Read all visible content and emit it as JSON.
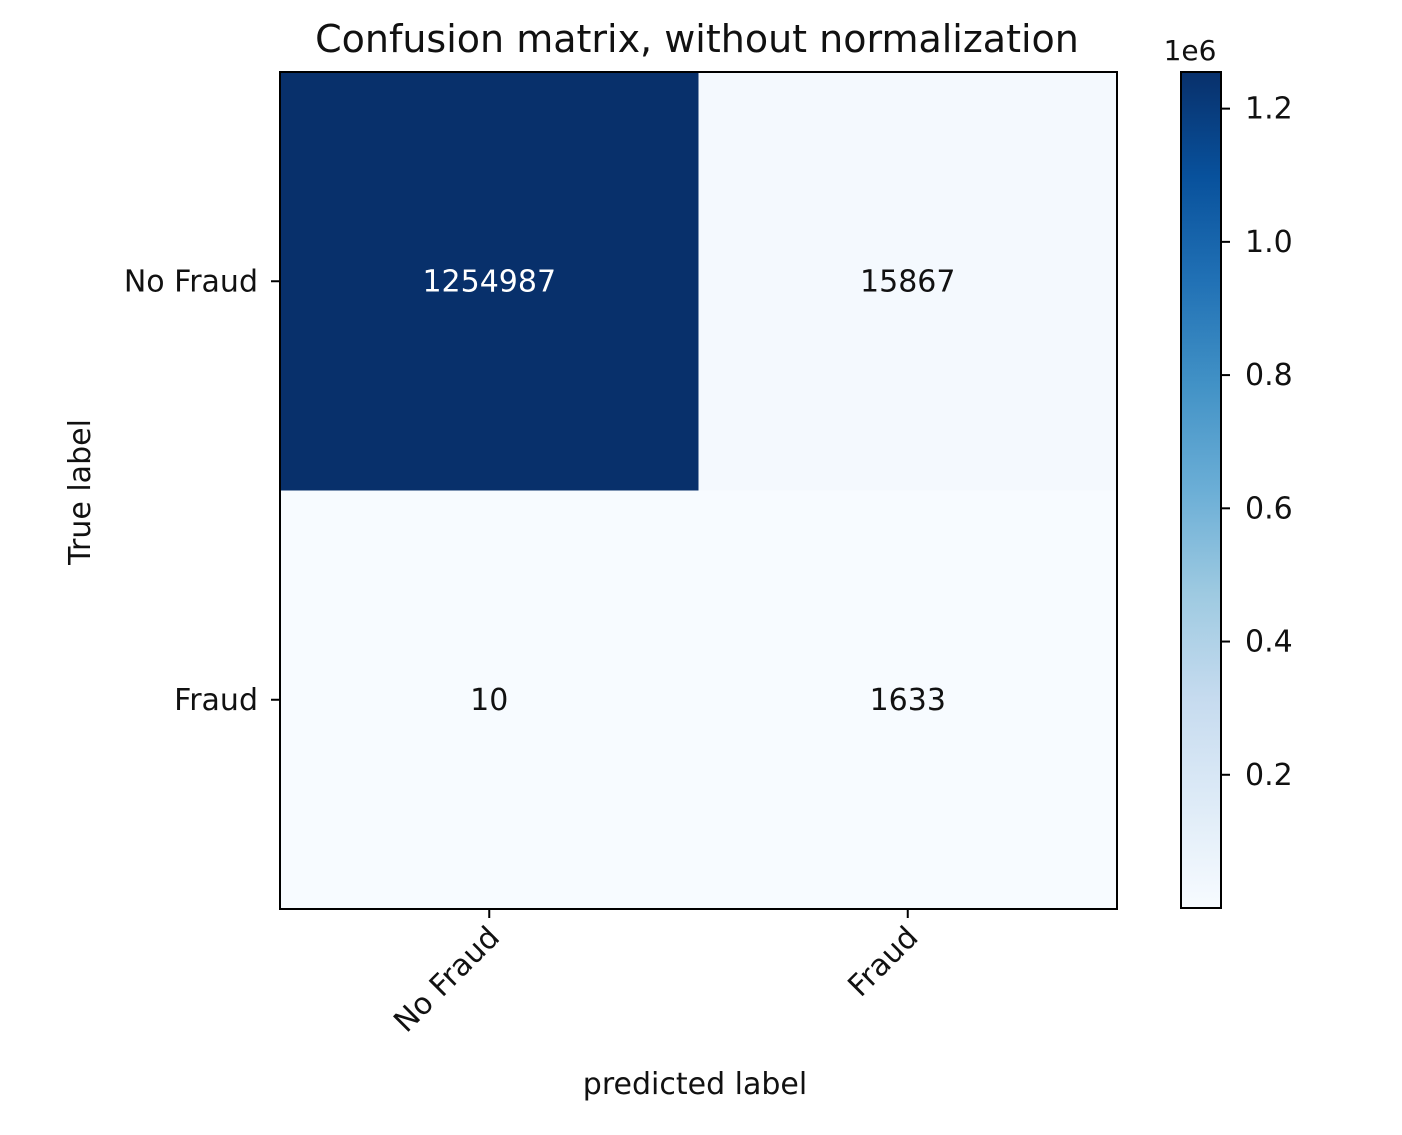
{
  "chart_data": {
    "type": "heatmap",
    "title": "Confusion matrix, without normalization",
    "xlabel": "predicted label",
    "ylabel": "True label",
    "x_categories": [
      "No Fraud",
      "Fraud"
    ],
    "y_categories": [
      "No Fraud",
      "Fraud"
    ],
    "matrix": [
      [
        1254987,
        15867
      ],
      [
        10,
        1633
      ]
    ],
    "cell_labels": [
      [
        "1254987",
        "15867"
      ],
      [
        "10",
        "1633"
      ]
    ],
    "colormap": "Blues",
    "colormap_stops": [
      "#f7fbff",
      "#deebf7",
      "#c6dbef",
      "#9ecae1",
      "#6baed6",
      "#4292c6",
      "#2171b5",
      "#08519c",
      "#08306b"
    ],
    "colorbar": {
      "min": 10,
      "max": 1254987,
      "multiplier_label": "1e6",
      "ticks": [
        0.2,
        0.4,
        0.6,
        0.8,
        1.0,
        1.2
      ],
      "tick_labels": [
        "0.2",
        "0.4",
        "0.6",
        "0.8",
        "1.0",
        "1.2"
      ]
    },
    "grid": false
  }
}
